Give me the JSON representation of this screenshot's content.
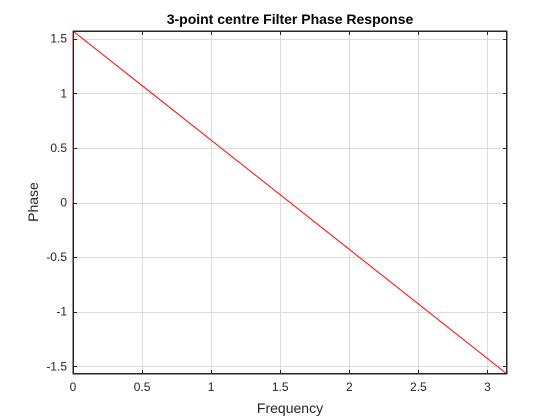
{
  "chart_data": {
    "type": "line",
    "title": "3-point centre Filter Phase Response",
    "xlabel": "Frequency",
    "ylabel": "Phase",
    "xlim": [
      0,
      3.1416
    ],
    "ylim": [
      -1.5708,
      1.5708
    ],
    "grid": true,
    "x_ticks": [
      0,
      0.5,
      1,
      1.5,
      2,
      2.5,
      3
    ],
    "x_tick_labels": [
      "0",
      "0.5",
      "1",
      "1.5",
      "2",
      "2.5",
      "3"
    ],
    "y_ticks": [
      -1.5,
      -1,
      -0.5,
      0,
      0.5,
      1,
      1.5
    ],
    "y_tick_labels": [
      "-1.5",
      "-1",
      "-0.5",
      "0",
      "0.5",
      "1",
      "1.5"
    ],
    "line_color": "#ff0000",
    "series": [
      {
        "x": [
          0,
          0,
          3.1416
        ],
        "y": [
          0,
          1.5708,
          -1.5708
        ]
      }
    ]
  }
}
